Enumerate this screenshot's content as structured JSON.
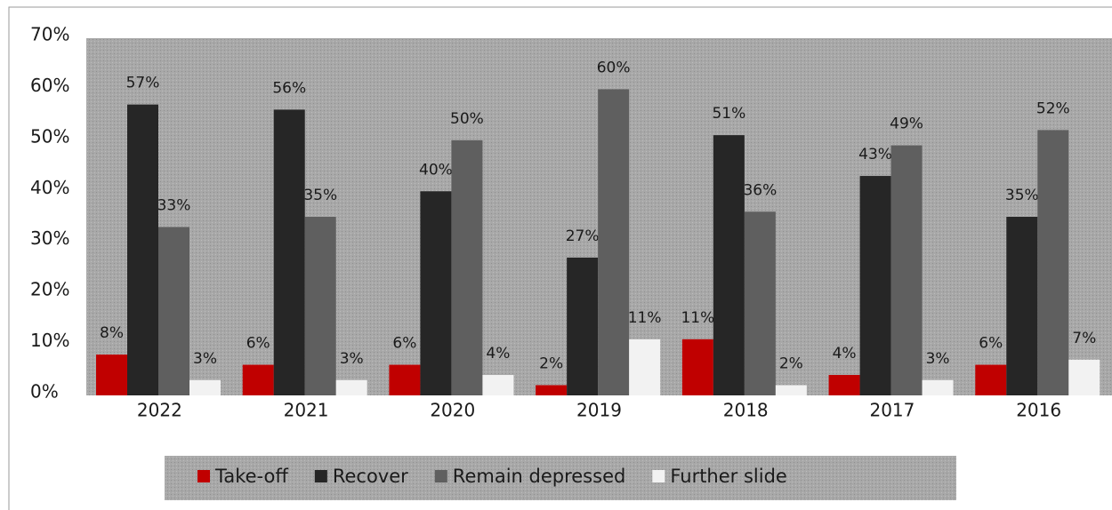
{
  "chart_data": {
    "type": "bar",
    "categories": [
      "2022",
      "2021",
      "2020",
      "2019",
      "2018",
      "2017",
      "2016"
    ],
    "series": [
      {
        "name": "Take-off",
        "color": "#c00000",
        "values": [
          8,
          6,
          6,
          2,
          11,
          4,
          6
        ],
        "value_labels": [
          "8%",
          "6%",
          "6%",
          "2%",
          "11%",
          "4%",
          "6%"
        ]
      },
      {
        "name": "Recover",
        "color": "#262626",
        "values": [
          57,
          56,
          40,
          27,
          51,
          43,
          35
        ],
        "value_labels": [
          "57%",
          "56%",
          "40%",
          "27%",
          "51%",
          "43%",
          "35%"
        ]
      },
      {
        "name": "Remain depressed",
        "color": "#5f5f5f",
        "values": [
          33,
          35,
          50,
          60,
          36,
          49,
          52
        ],
        "value_labels": [
          "33%",
          "35%",
          "50%",
          "60%",
          "36%",
          "49%",
          "52%"
        ]
      },
      {
        "name": "Further slide",
        "color": "#f2f2f2",
        "values": [
          3,
          3,
          4,
          11,
          2,
          3,
          7
        ],
        "value_labels": [
          "3%",
          "3%",
          "4%",
          "11%",
          "2%",
          "3%",
          "7%"
        ]
      }
    ],
    "ylim": [
      0,
      70
    ],
    "yticks": [
      {
        "value": 0,
        "label": "0%"
      },
      {
        "value": 10,
        "label": "10%"
      },
      {
        "value": 20,
        "label": "20%"
      },
      {
        "value": 30,
        "label": "30%"
      },
      {
        "value": 40,
        "label": "40%"
      },
      {
        "value": 50,
        "label": "50%"
      },
      {
        "value": 60,
        "label": "60%"
      },
      {
        "value": 70,
        "label": "70%"
      }
    ],
    "legend": "bottom"
  }
}
